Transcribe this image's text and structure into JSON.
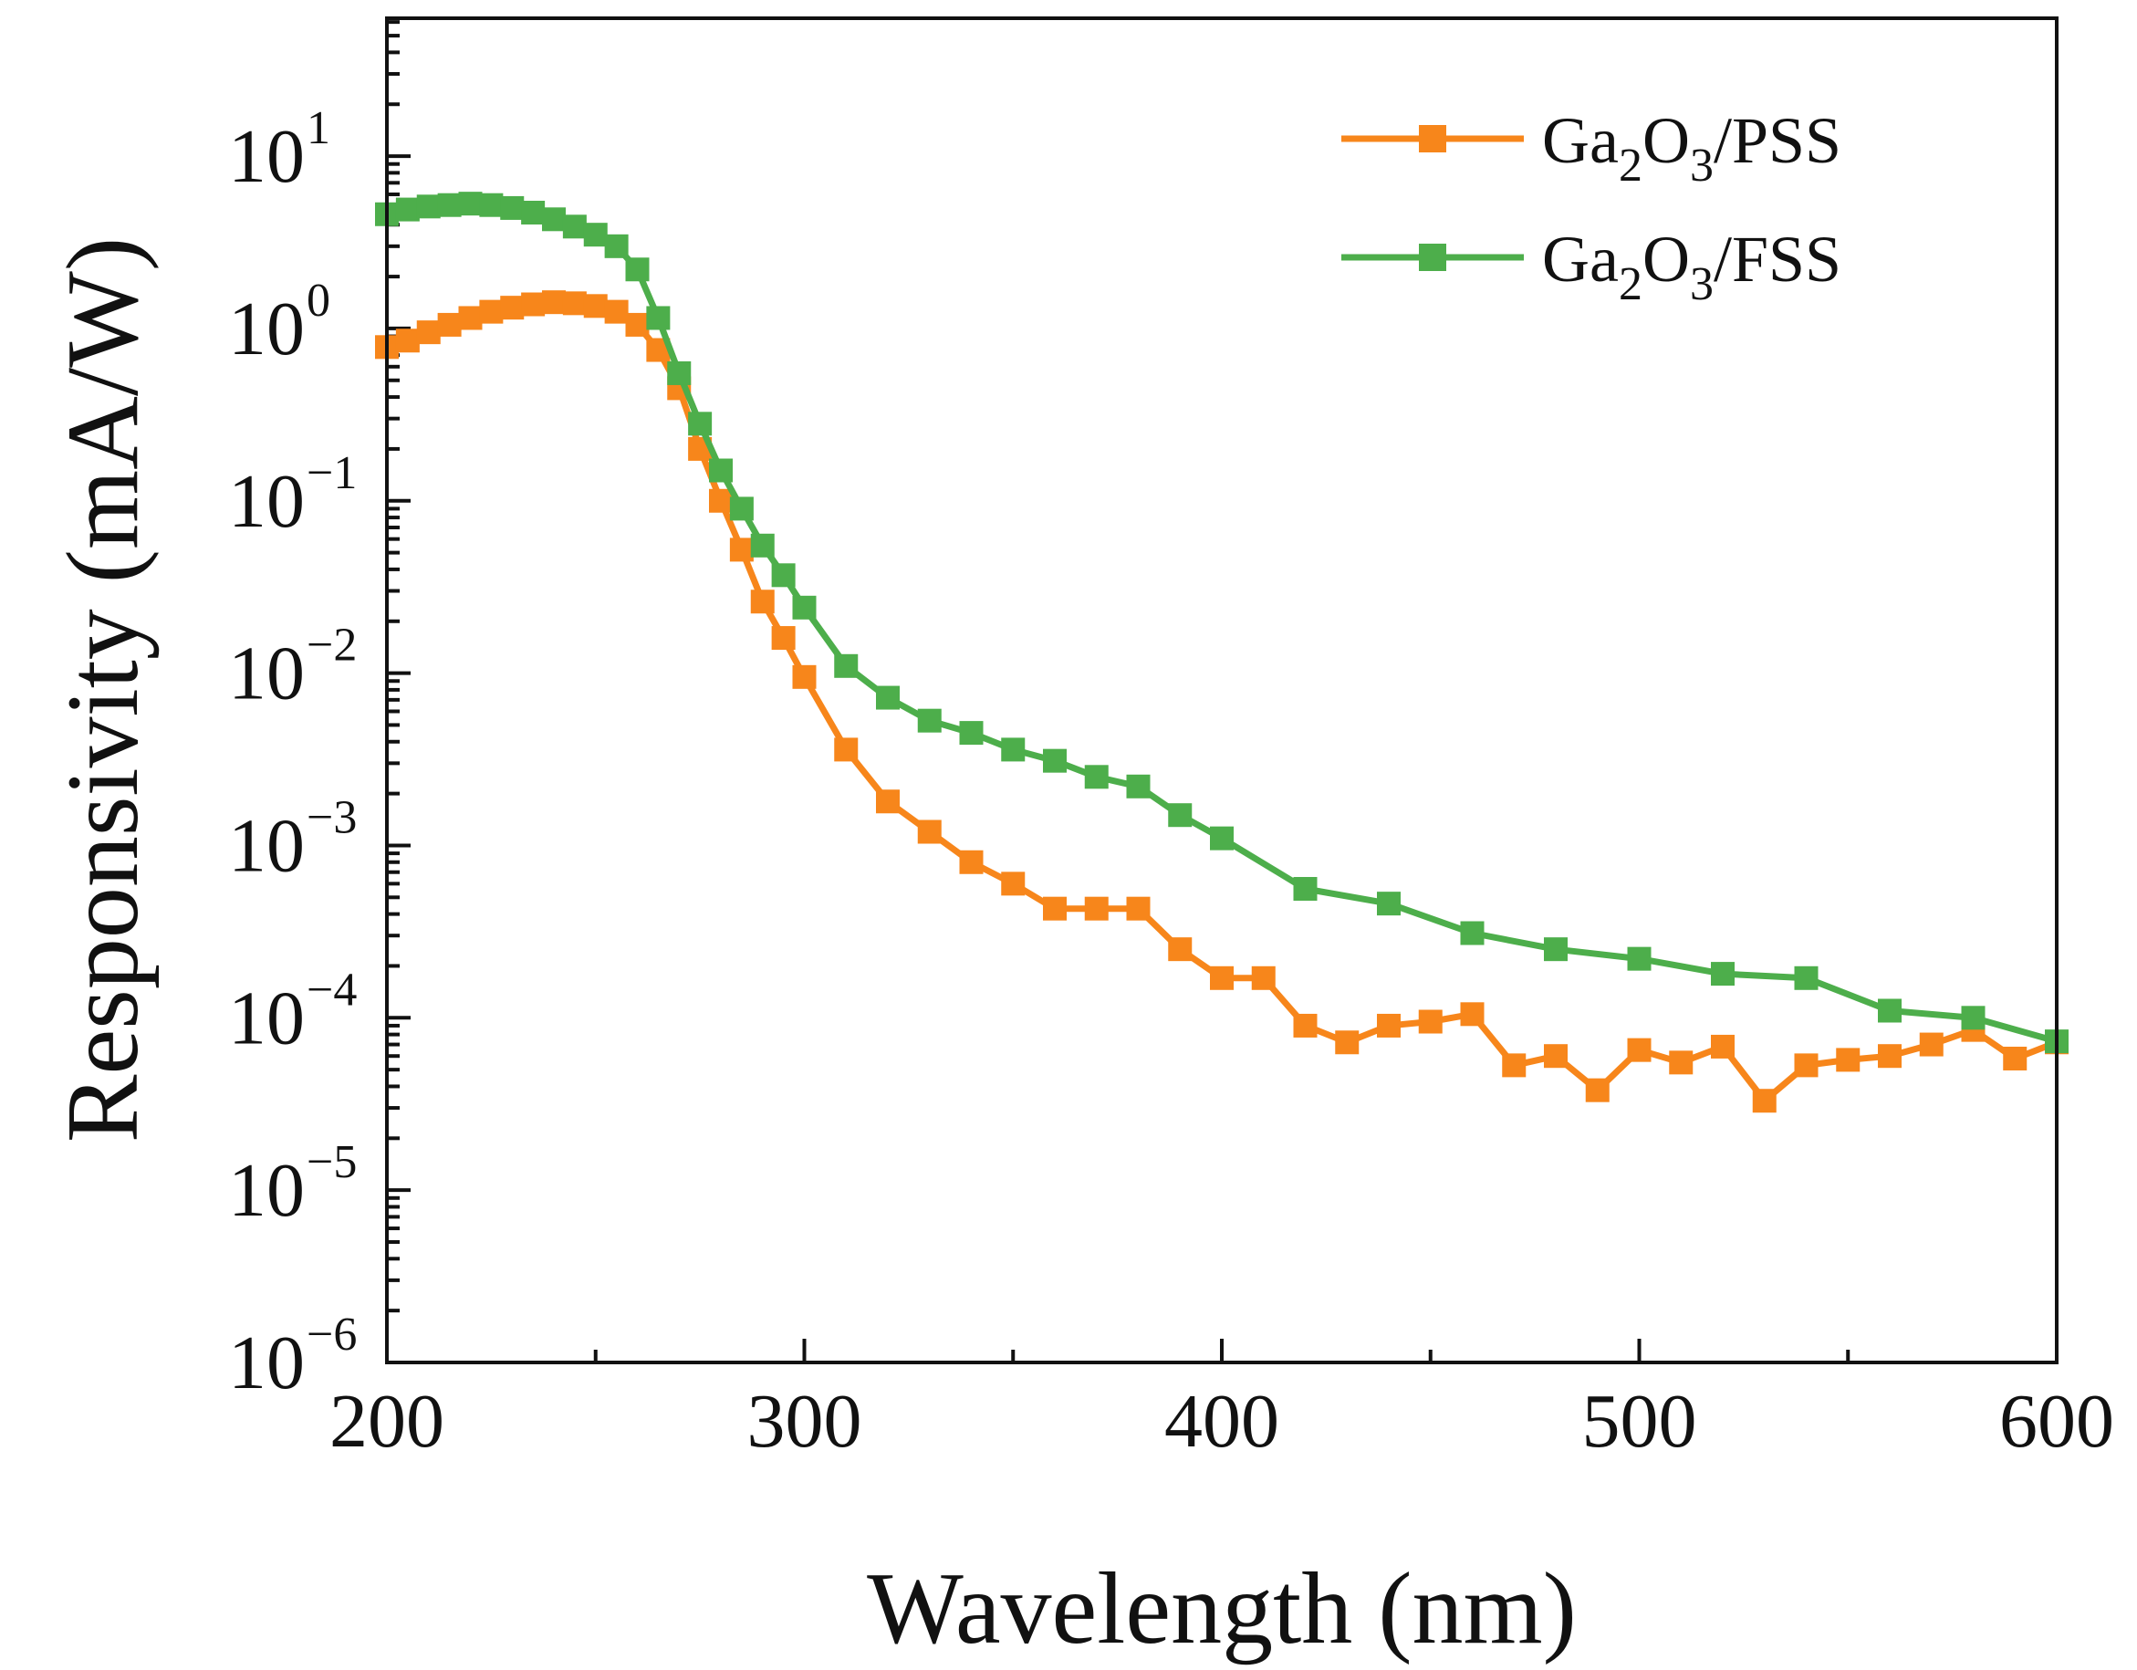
{
  "chart_data": {
    "type": "line",
    "title": "",
    "xlabel": "Wavelength (nm)",
    "ylabel": "Responsivity (mA/W)",
    "xlim": [
      200,
      600
    ],
    "ylim_log10": [
      -6,
      1.8
    ],
    "y_scale": "log",
    "x_ticks": [
      "200",
      "300",
      "400",
      "500",
      "600"
    ],
    "x_tick_values": [
      200,
      300,
      400,
      500,
      600
    ],
    "y_ticks": [
      {
        "exp": -6,
        "base": "10",
        "power": "−6"
      },
      {
        "exp": -5,
        "base": "10",
        "power": "−5"
      },
      {
        "exp": -4,
        "base": "10",
        "power": "−4"
      },
      {
        "exp": -3,
        "base": "10",
        "power": "−3"
      },
      {
        "exp": -2,
        "base": "10",
        "power": "−2"
      },
      {
        "exp": -1,
        "base": "10",
        "power": "−1"
      },
      {
        "exp": 0,
        "base": "10",
        "power": "0"
      },
      {
        "exp": 1,
        "base": "10",
        "power": "1"
      }
    ],
    "legend_position": "top-right",
    "series": [
      {
        "name": "Ga2O3/PSS",
        "label_parts": [
          "Ga",
          "2",
          "O",
          "3",
          "/PSS"
        ],
        "color": "#F7861B",
        "x": [
          200,
          205,
          210,
          215,
          220,
          225,
          230,
          235,
          240,
          245,
          250,
          255,
          260,
          265,
          270,
          275,
          280,
          285,
          290,
          295,
          300,
          310,
          320,
          330,
          340,
          350,
          360,
          370,
          380,
          390,
          400,
          410,
          420,
          430,
          440,
          450,
          460,
          470,
          480,
          490,
          500,
          510,
          520,
          530,
          540,
          550,
          560,
          570,
          580,
          590,
          600
        ],
        "y": [
          0.78,
          0.85,
          0.95,
          1.05,
          1.15,
          1.25,
          1.32,
          1.38,
          1.42,
          1.4,
          1.35,
          1.25,
          1.05,
          0.75,
          0.45,
          0.2,
          0.1,
          0.052,
          0.026,
          0.016,
          0.0095,
          0.0036,
          0.0018,
          0.0012,
          0.0008,
          0.0006,
          0.00043,
          0.00043,
          0.00043,
          0.00025,
          0.00017,
          0.00017,
          9e-05,
          7.2e-05,
          9e-05,
          9.5e-05,
          0.000105,
          5.3e-05,
          6e-05,
          3.8e-05,
          6.5e-05,
          5.5e-05,
          6.8e-05,
          3.3e-05,
          5.3e-05,
          5.7e-05,
          6e-05,
          7e-05,
          8.5e-05,
          5.8e-05,
          7.2e-05
        ]
      },
      {
        "name": "Ga2O3/FSS",
        "label_parts": [
          "Ga",
          "2",
          "O",
          "3",
          "/FSS"
        ],
        "color": "#4DAE4B",
        "x": [
          200,
          205,
          210,
          215,
          220,
          225,
          230,
          235,
          240,
          245,
          250,
          255,
          260,
          265,
          270,
          275,
          280,
          285,
          290,
          295,
          300,
          310,
          320,
          330,
          340,
          350,
          360,
          370,
          380,
          390,
          400,
          420,
          440,
          460,
          480,
          500,
          520,
          540,
          560,
          580,
          600
        ],
        "y": [
          4.6,
          4.9,
          5.1,
          5.2,
          5.3,
          5.2,
          5.0,
          4.7,
          4.3,
          3.9,
          3.5,
          3.0,
          2.2,
          1.15,
          0.55,
          0.28,
          0.15,
          0.09,
          0.055,
          0.037,
          0.024,
          0.011,
          0.0072,
          0.0053,
          0.0045,
          0.0036,
          0.0031,
          0.0025,
          0.0022,
          0.0015,
          0.0011,
          0.00056,
          0.00046,
          0.00031,
          0.00025,
          0.00022,
          0.00018,
          0.00017,
          0.00011,
          0.0001,
          7.3e-05
        ]
      }
    ]
  }
}
